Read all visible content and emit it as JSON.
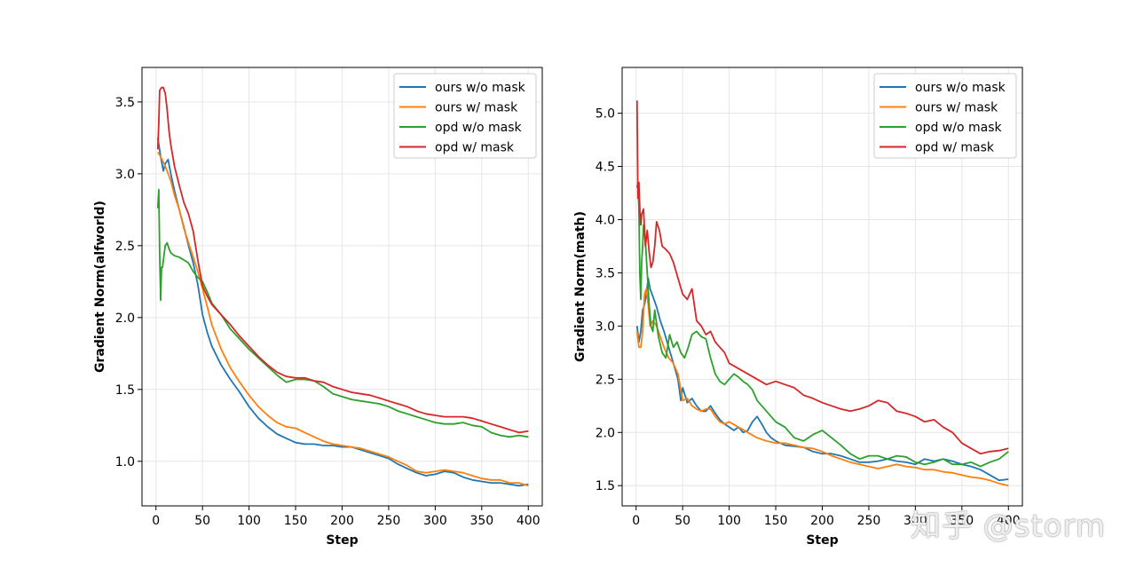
{
  "colors": {
    "ours_wo": "#1f77b4",
    "ours_w": "#ff7f0e",
    "opd_wo": "#2ca02c",
    "opd_w": "#d62728"
  },
  "watermark": "知乎 @storm",
  "chart_data": [
    {
      "type": "line",
      "ylabel": "Gradient Norm(alfworld)",
      "xlabel": "Step",
      "xlim": [
        -15,
        415
      ],
      "ylim": [
        0.69,
        3.74
      ],
      "xticks": [
        0,
        50,
        100,
        150,
        200,
        250,
        300,
        350,
        400
      ],
      "yticks": [
        1.0,
        1.5,
        2.0,
        2.5,
        3.0,
        3.5
      ],
      "legend_position": "top-right",
      "series": [
        {
          "name": "ours w/o mask",
          "color": "#1f77b4",
          "x": [
            2,
            5,
            8,
            10,
            13,
            16,
            20,
            25,
            30,
            35,
            40,
            45,
            50,
            55,
            60,
            70,
            80,
            90,
            100,
            110,
            120,
            130,
            140,
            150,
            160,
            170,
            180,
            190,
            200,
            210,
            220,
            230,
            240,
            250,
            260,
            270,
            280,
            290,
            300,
            310,
            320,
            330,
            340,
            350,
            360,
            370,
            380,
            390,
            400
          ],
          "y": [
            3.25,
            3.12,
            3.02,
            3.07,
            3.1,
            3.0,
            2.88,
            2.75,
            2.63,
            2.5,
            2.38,
            2.23,
            2.02,
            1.9,
            1.8,
            1.67,
            1.57,
            1.48,
            1.38,
            1.3,
            1.24,
            1.19,
            1.16,
            1.13,
            1.12,
            1.12,
            1.11,
            1.11,
            1.1,
            1.1,
            1.08,
            1.06,
            1.04,
            1.02,
            0.98,
            0.95,
            0.92,
            0.9,
            0.91,
            0.93,
            0.92,
            0.89,
            0.87,
            0.86,
            0.85,
            0.85,
            0.84,
            0.83,
            0.84
          ]
        },
        {
          "name": "ours w/ mask",
          "color": "#ff7f0e",
          "x": [
            2,
            5,
            8,
            12,
            16,
            20,
            25,
            30,
            35,
            40,
            45,
            50,
            55,
            60,
            70,
            80,
            90,
            100,
            110,
            120,
            130,
            140,
            150,
            160,
            170,
            180,
            190,
            200,
            210,
            220,
            230,
            240,
            250,
            260,
            270,
            280,
            290,
            300,
            310,
            320,
            330,
            340,
            350,
            360,
            370,
            380,
            390,
            400
          ],
          "y": [
            3.15,
            3.12,
            3.08,
            3.02,
            2.95,
            2.85,
            2.75,
            2.62,
            2.52,
            2.42,
            2.32,
            2.2,
            2.08,
            1.95,
            1.78,
            1.65,
            1.55,
            1.46,
            1.38,
            1.32,
            1.27,
            1.24,
            1.23,
            1.2,
            1.17,
            1.14,
            1.12,
            1.11,
            1.1,
            1.09,
            1.07,
            1.05,
            1.03,
            1.0,
            0.97,
            0.93,
            0.92,
            0.93,
            0.94,
            0.93,
            0.92,
            0.9,
            0.88,
            0.87,
            0.87,
            0.85,
            0.85,
            0.83
          ]
        },
        {
          "name": "opd w/o mask",
          "color": "#2ca02c",
          "x": [
            2,
            3,
            4,
            5,
            6,
            7,
            8,
            10,
            12,
            14,
            16,
            20,
            25,
            30,
            35,
            40,
            45,
            50,
            55,
            60,
            70,
            80,
            90,
            100,
            110,
            120,
            130,
            140,
            150,
            160,
            170,
            180,
            190,
            200,
            210,
            220,
            230,
            240,
            250,
            260,
            270,
            280,
            290,
            300,
            310,
            320,
            330,
            340,
            350,
            360,
            370,
            380,
            390,
            400
          ],
          "y": [
            2.76,
            2.89,
            2.45,
            2.12,
            2.35,
            2.35,
            2.4,
            2.5,
            2.52,
            2.48,
            2.45,
            2.43,
            2.42,
            2.4,
            2.38,
            2.32,
            2.28,
            2.25,
            2.18,
            2.1,
            2.02,
            1.92,
            1.85,
            1.78,
            1.72,
            1.66,
            1.6,
            1.55,
            1.57,
            1.57,
            1.56,
            1.52,
            1.47,
            1.45,
            1.43,
            1.42,
            1.41,
            1.4,
            1.38,
            1.35,
            1.33,
            1.31,
            1.29,
            1.27,
            1.26,
            1.26,
            1.27,
            1.25,
            1.24,
            1.2,
            1.18,
            1.17,
            1.18,
            1.17
          ]
        },
        {
          "name": "opd w/ mask",
          "color": "#d62728",
          "x": [
            2,
            3,
            4,
            5,
            6,
            8,
            10,
            12,
            14,
            16,
            20,
            25,
            30,
            35,
            40,
            45,
            50,
            55,
            60,
            70,
            80,
            90,
            100,
            110,
            120,
            130,
            140,
            150,
            160,
            170,
            180,
            190,
            200,
            210,
            220,
            230,
            240,
            250,
            260,
            270,
            280,
            290,
            300,
            310,
            320,
            330,
            340,
            350,
            360,
            370,
            380,
            390,
            400
          ],
          "y": [
            3.17,
            3.35,
            3.58,
            3.59,
            3.6,
            3.6,
            3.56,
            3.45,
            3.3,
            3.2,
            3.05,
            2.92,
            2.8,
            2.72,
            2.6,
            2.4,
            2.22,
            2.15,
            2.09,
            2.02,
            1.95,
            1.87,
            1.8,
            1.73,
            1.67,
            1.62,
            1.59,
            1.58,
            1.58,
            1.56,
            1.55,
            1.52,
            1.5,
            1.48,
            1.47,
            1.46,
            1.44,
            1.42,
            1.4,
            1.38,
            1.35,
            1.33,
            1.32,
            1.31,
            1.31,
            1.31,
            1.3,
            1.28,
            1.26,
            1.24,
            1.22,
            1.2,
            1.21
          ]
        }
      ]
    },
    {
      "type": "line",
      "ylabel": "Gradient Norm(math)",
      "xlabel": "Step",
      "xlim": [
        -15,
        415
      ],
      "ylim": [
        1.31,
        5.43
      ],
      "xticks": [
        0,
        50,
        100,
        150,
        200,
        250,
        300,
        350,
        400
      ],
      "yticks": [
        1.5,
        2.0,
        2.5,
        3.0,
        3.5,
        4.0,
        4.5,
        5.0
      ],
      "legend_position": "top-right",
      "series": [
        {
          "name": "ours w/o mask",
          "color": "#1f77b4",
          "x": [
            1,
            3,
            5,
            7,
            9,
            11,
            13,
            15,
            18,
            22,
            26,
            30,
            35,
            40,
            45,
            48,
            50,
            55,
            60,
            65,
            70,
            75,
            80,
            85,
            90,
            95,
            100,
            105,
            110,
            115,
            120,
            125,
            130,
            135,
            140,
            145,
            150,
            160,
            170,
            180,
            190,
            200,
            210,
            220,
            230,
            240,
            250,
            260,
            270,
            280,
            290,
            300,
            310,
            320,
            330,
            340,
            350,
            360,
            370,
            380,
            390,
            400
          ],
          "y": [
            3.0,
            2.85,
            2.95,
            3.15,
            3.2,
            3.3,
            3.45,
            3.35,
            3.28,
            3.18,
            3.05,
            2.95,
            2.8,
            2.65,
            2.5,
            2.3,
            2.42,
            2.28,
            2.32,
            2.25,
            2.2,
            2.2,
            2.25,
            2.18,
            2.12,
            2.08,
            2.05,
            2.02,
            2.05,
            2.0,
            2.02,
            2.1,
            2.15,
            2.08,
            2.0,
            1.95,
            1.92,
            1.88,
            1.87,
            1.86,
            1.82,
            1.8,
            1.8,
            1.78,
            1.75,
            1.72,
            1.72,
            1.73,
            1.75,
            1.73,
            1.72,
            1.7,
            1.75,
            1.73,
            1.75,
            1.73,
            1.7,
            1.68,
            1.65,
            1.6,
            1.55,
            1.56
          ]
        },
        {
          "name": "ours w/ mask",
          "color": "#ff7f0e",
          "x": [
            1,
            3,
            5,
            7,
            9,
            11,
            13,
            15,
            18,
            22,
            26,
            30,
            35,
            40,
            45,
            48,
            50,
            55,
            60,
            65,
            70,
            75,
            80,
            85,
            90,
            95,
            100,
            110,
            120,
            130,
            140,
            150,
            160,
            170,
            180,
            190,
            200,
            210,
            220,
            230,
            240,
            250,
            260,
            270,
            280,
            290,
            300,
            310,
            320,
            330,
            340,
            350,
            360,
            370,
            380,
            390,
            400
          ],
          "y": [
            2.95,
            2.8,
            2.8,
            2.95,
            3.3,
            3.35,
            3.2,
            3.0,
            3.05,
            3.0,
            2.9,
            2.8,
            2.7,
            2.65,
            2.55,
            2.4,
            2.3,
            2.32,
            2.25,
            2.22,
            2.2,
            2.22,
            2.22,
            2.15,
            2.1,
            2.08,
            2.1,
            2.05,
            2.0,
            1.95,
            1.92,
            1.9,
            1.9,
            1.88,
            1.86,
            1.85,
            1.82,
            1.78,
            1.75,
            1.72,
            1.7,
            1.68,
            1.66,
            1.68,
            1.7,
            1.68,
            1.67,
            1.65,
            1.65,
            1.63,
            1.62,
            1.6,
            1.58,
            1.57,
            1.55,
            1.52,
            1.5
          ]
        },
        {
          "name": "opd w/o mask",
          "color": "#2ca02c",
          "x": [
            1,
            2,
            3,
            4,
            5,
            6,
            7,
            8,
            10,
            12,
            14,
            16,
            18,
            20,
            24,
            28,
            32,
            36,
            40,
            44,
            48,
            52,
            56,
            60,
            65,
            70,
            75,
            80,
            85,
            90,
            95,
            100,
            105,
            110,
            115,
            120,
            125,
            130,
            140,
            150,
            160,
            170,
            180,
            190,
            200,
            210,
            220,
            230,
            240,
            250,
            260,
            270,
            280,
            290,
            300,
            310,
            320,
            330,
            340,
            350,
            360,
            370,
            380,
            390,
            400
          ],
          "y": [
            4.3,
            4.35,
            4.1,
            3.5,
            3.25,
            3.6,
            3.75,
            3.95,
            3.8,
            3.5,
            3.2,
            3.0,
            2.95,
            3.15,
            2.9,
            2.75,
            2.7,
            2.92,
            2.8,
            2.85,
            2.75,
            2.7,
            2.8,
            2.92,
            2.95,
            2.9,
            2.88,
            2.7,
            2.55,
            2.48,
            2.45,
            2.5,
            2.55,
            2.52,
            2.48,
            2.45,
            2.4,
            2.3,
            2.2,
            2.1,
            2.05,
            1.95,
            1.92,
            1.98,
            2.02,
            1.95,
            1.88,
            1.8,
            1.75,
            1.78,
            1.78,
            1.75,
            1.78,
            1.77,
            1.72,
            1.7,
            1.72,
            1.75,
            1.7,
            1.7,
            1.72,
            1.68,
            1.72,
            1.75,
            1.82
          ]
        },
        {
          "name": "opd w/ mask",
          "color": "#d62728",
          "x": [
            1,
            2,
            3,
            4,
            5,
            6,
            8,
            10,
            12,
            14,
            16,
            18,
            20,
            22,
            25,
            28,
            32,
            36,
            40,
            45,
            50,
            55,
            60,
            65,
            70,
            75,
            80,
            85,
            90,
            95,
            100,
            110,
            120,
            130,
            140,
            150,
            160,
            170,
            180,
            190,
            200,
            210,
            220,
            230,
            240,
            250,
            260,
            270,
            280,
            290,
            300,
            310,
            320,
            330,
            340,
            350,
            360,
            370,
            380,
            390,
            400
          ],
          "y": [
            5.12,
            4.2,
            4.35,
            4.1,
            3.95,
            4.05,
            4.1,
            3.75,
            3.9,
            3.7,
            3.55,
            3.6,
            3.75,
            3.98,
            3.9,
            3.75,
            3.72,
            3.68,
            3.6,
            3.45,
            3.3,
            3.25,
            3.35,
            3.05,
            3.0,
            2.92,
            2.95,
            2.85,
            2.8,
            2.75,
            2.65,
            2.6,
            2.55,
            2.5,
            2.45,
            2.48,
            2.45,
            2.42,
            2.35,
            2.32,
            2.28,
            2.25,
            2.22,
            2.2,
            2.22,
            2.25,
            2.3,
            2.28,
            2.2,
            2.18,
            2.15,
            2.1,
            2.12,
            2.05,
            2.0,
            1.9,
            1.85,
            1.8,
            1.82,
            1.83,
            1.85
          ]
        }
      ]
    }
  ]
}
